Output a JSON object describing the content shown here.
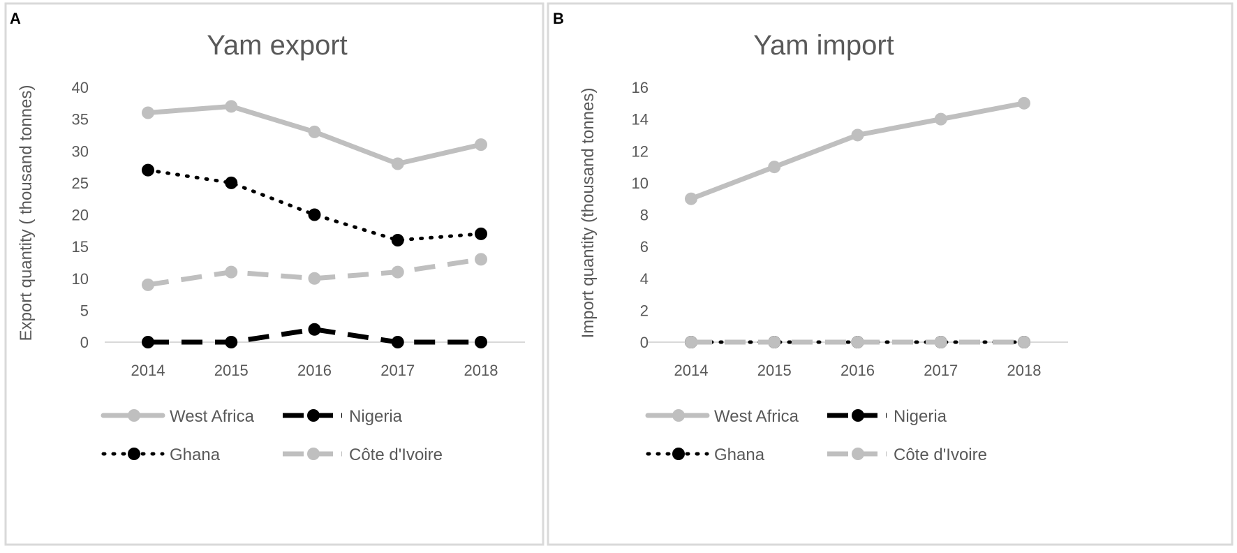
{
  "colors": {
    "gray": "#bfbfbf",
    "black": "#000000",
    "axis": "#d9d9d9",
    "text": "#595959",
    "border": "#d9d9d9"
  },
  "chart_data": [
    {
      "panel": "A",
      "type": "line",
      "title": "Yam export",
      "xlabel": "",
      "ylabel": "Export quantity ( thousand tonnes)",
      "x": [
        "2014",
        "2015",
        "2016",
        "2017",
        "2018"
      ],
      "ylim": [
        0,
        40
      ],
      "yticks": [
        "0",
        "5",
        "10",
        "15",
        "20",
        "25",
        "30",
        "35",
        "40"
      ],
      "grid": false,
      "legend_position": "bottom",
      "series": [
        {
          "name": "West Africa",
          "style": "solid",
          "color": "#bfbfbf",
          "values": [
            36,
            37,
            33,
            28,
            31
          ]
        },
        {
          "name": "Nigeria",
          "style": "dash",
          "color": "#000000",
          "values": [
            0,
            0,
            2,
            0,
            0
          ]
        },
        {
          "name": "Ghana",
          "style": "dot",
          "color": "#000000",
          "values": [
            27,
            25,
            20,
            16,
            17
          ]
        },
        {
          "name": "Côte d'Ivoire",
          "style": "dash",
          "color": "#bfbfbf",
          "values": [
            9,
            11,
            10,
            11,
            13
          ]
        }
      ]
    },
    {
      "panel": "B",
      "type": "line",
      "title": "Yam import",
      "xlabel": "",
      "ylabel": "Import quantity (thousand tonnes)",
      "x": [
        "2014",
        "2015",
        "2016",
        "2017",
        "2018"
      ],
      "ylim": [
        0,
        16
      ],
      "yticks": [
        "0",
        "2",
        "4",
        "6",
        "8",
        "10",
        "12",
        "14",
        "16"
      ],
      "grid": false,
      "legend_position": "bottom",
      "series": [
        {
          "name": "West Africa",
          "style": "solid",
          "color": "#bfbfbf",
          "values": [
            9,
            11,
            13,
            14,
            15
          ]
        },
        {
          "name": "Nigeria",
          "style": "dash",
          "color": "#000000",
          "values": [
            0,
            0,
            0,
            0,
            0
          ]
        },
        {
          "name": "Ghana",
          "style": "dot",
          "color": "#000000",
          "values": [
            0,
            0,
            0,
            0,
            0
          ]
        },
        {
          "name": "Côte d'Ivoire",
          "style": "dash",
          "color": "#bfbfbf",
          "values": [
            0,
            0,
            0,
            0,
            0
          ]
        }
      ]
    }
  ]
}
